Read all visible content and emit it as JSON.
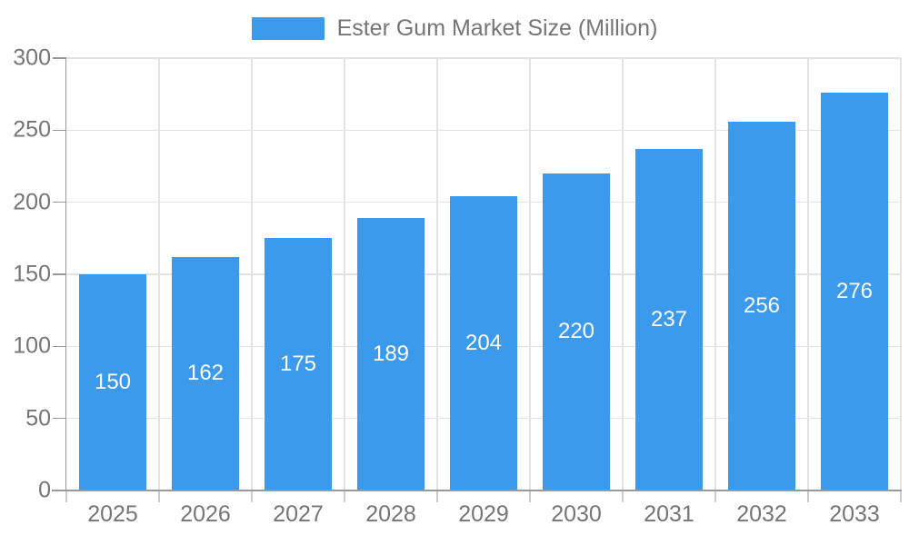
{
  "chart_data": {
    "type": "bar",
    "title": "Ester Gum Market Size (Million)",
    "categories": [
      "2025",
      "2026",
      "2027",
      "2028",
      "2029",
      "2030",
      "2031",
      "2032",
      "2033"
    ],
    "series": [
      {
        "name": "Ester Gum Market Size (Million)",
        "values": [
          150,
          162,
          175,
          189,
          204,
          220,
          237,
          256,
          276
        ]
      }
    ],
    "values": [
      150,
      162,
      175,
      189,
      204,
      220,
      237,
      256,
      276
    ],
    "bar_value_labels": [
      "150",
      "162",
      "175",
      "189",
      "204",
      "220",
      "237",
      "256",
      "276"
    ],
    "xlabel": "",
    "ylabel": "",
    "ylim": [
      0,
      300
    ],
    "y_ticks": [
      0,
      50,
      100,
      150,
      200,
      250,
      300
    ],
    "grid": true,
    "legend_position": "top",
    "colors": {
      "bar": "#3B9AEC",
      "bar_label": "#FFFFFF",
      "grid": "#E3E3E3",
      "axis": "#999999",
      "tick": "#CCCCCC",
      "text": "#757575",
      "background": "#FFFFFF"
    }
  }
}
